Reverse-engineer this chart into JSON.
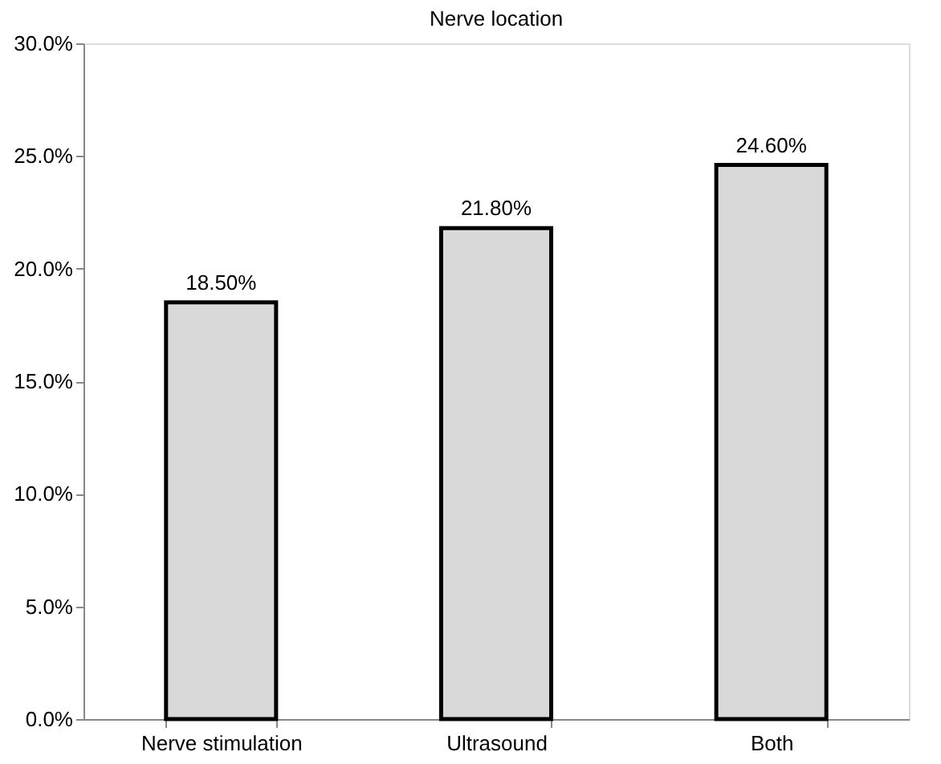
{
  "chart_data": {
    "type": "bar",
    "title": "Nerve location",
    "categories": [
      "Nerve stimulation",
      "Ultrasound",
      "Both"
    ],
    "values": [
      18.5,
      21.8,
      24.6
    ],
    "color": "#d9d9d9",
    "value_labels": [
      "18.50%",
      "21.80%",
      "24.60%"
    ],
    "ylim": [
      0,
      30
    ],
    "yticks": [
      {
        "value": 0,
        "label": "0.0%"
      },
      {
        "value": 5,
        "label": "5.0%"
      },
      {
        "value": 10,
        "label": "10.0%"
      },
      {
        "value": 15,
        "label": "15.0%"
      },
      {
        "value": 20,
        "label": "20.0%"
      },
      {
        "value": 25,
        "label": "25.0%"
      },
      {
        "value": 30,
        "label": "30.0%"
      }
    ],
    "grid": false
  }
}
